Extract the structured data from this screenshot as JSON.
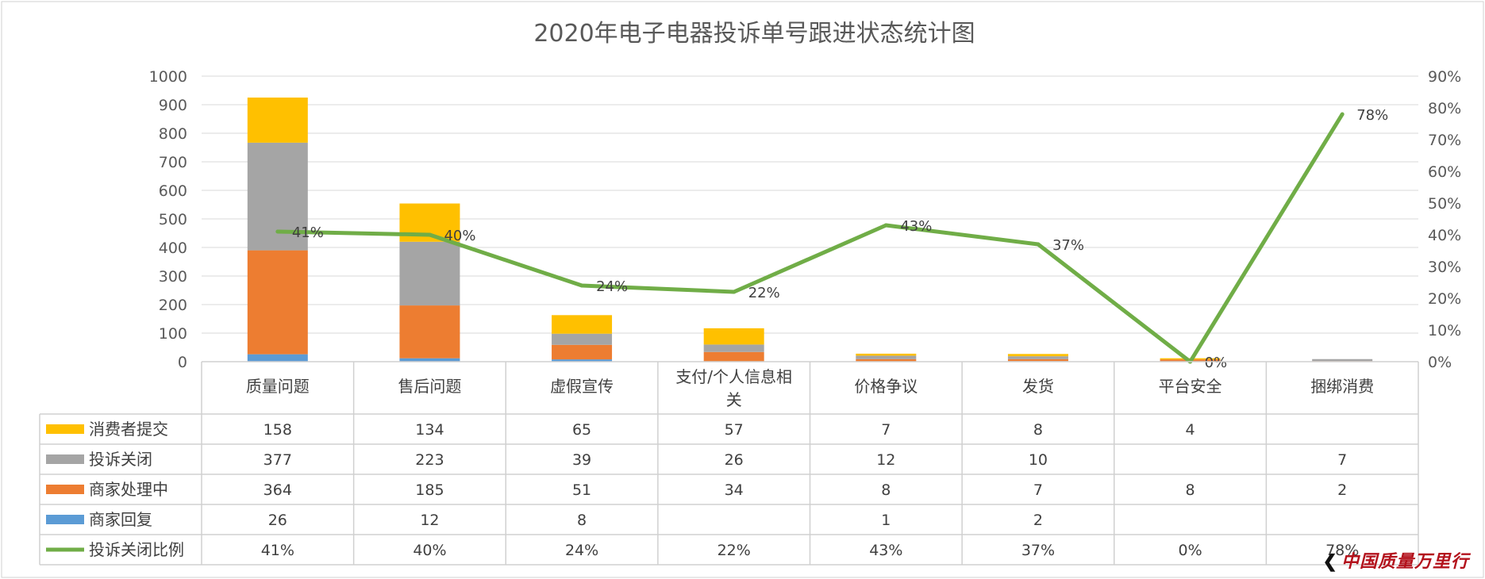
{
  "chart_data": {
    "type": "bar",
    "title": "2020年电子电器投诉单号跟进状态统计图",
    "categories": [
      "质量问题",
      "售后问题",
      "虚假宣传",
      "支付/个人信息相关",
      "价格争议",
      "发货",
      "平台安全",
      "捆绑消费"
    ],
    "stack_order_bottom_to_top": [
      "商家回复",
      "商家处理中",
      "投诉关闭",
      "消费者提交"
    ],
    "series": [
      {
        "name": "消费者提交",
        "type": "stacked-bar",
        "color": "#FFC000",
        "values": [
          158,
          134,
          65,
          57,
          7,
          8,
          4,
          null
        ]
      },
      {
        "name": "投诉关闭",
        "type": "stacked-bar",
        "color": "#A5A5A5",
        "values": [
          377,
          223,
          39,
          26,
          12,
          10,
          null,
          7
        ]
      },
      {
        "name": "商家处理中",
        "type": "stacked-bar",
        "color": "#ED7D31",
        "values": [
          364,
          185,
          51,
          34,
          8,
          7,
          8,
          2
        ]
      },
      {
        "name": "商家回复",
        "type": "stacked-bar",
        "color": "#5B9BD5",
        "values": [
          26,
          12,
          8,
          null,
          1,
          2,
          null,
          null
        ]
      },
      {
        "name": "投诉关闭比例",
        "type": "line",
        "axis": "right",
        "color": "#70AD47",
        "values": [
          41,
          40,
          24,
          22,
          43,
          37,
          0,
          78
        ]
      }
    ],
    "left_axis": {
      "ylim": [
        0,
        1000
      ],
      "ticks": [
        0,
        100,
        200,
        300,
        400,
        500,
        600,
        700,
        800,
        900,
        1000
      ]
    },
    "right_axis": {
      "ylim": [
        0,
        90
      ],
      "ticks": [
        0,
        10,
        20,
        30,
        40,
        50,
        60,
        70,
        80,
        90
      ],
      "unit": "%"
    },
    "grid": true,
    "legend": "data-table-left"
  },
  "watermark": {
    "text": "中国质量万里行",
    "chevron": "❮"
  }
}
